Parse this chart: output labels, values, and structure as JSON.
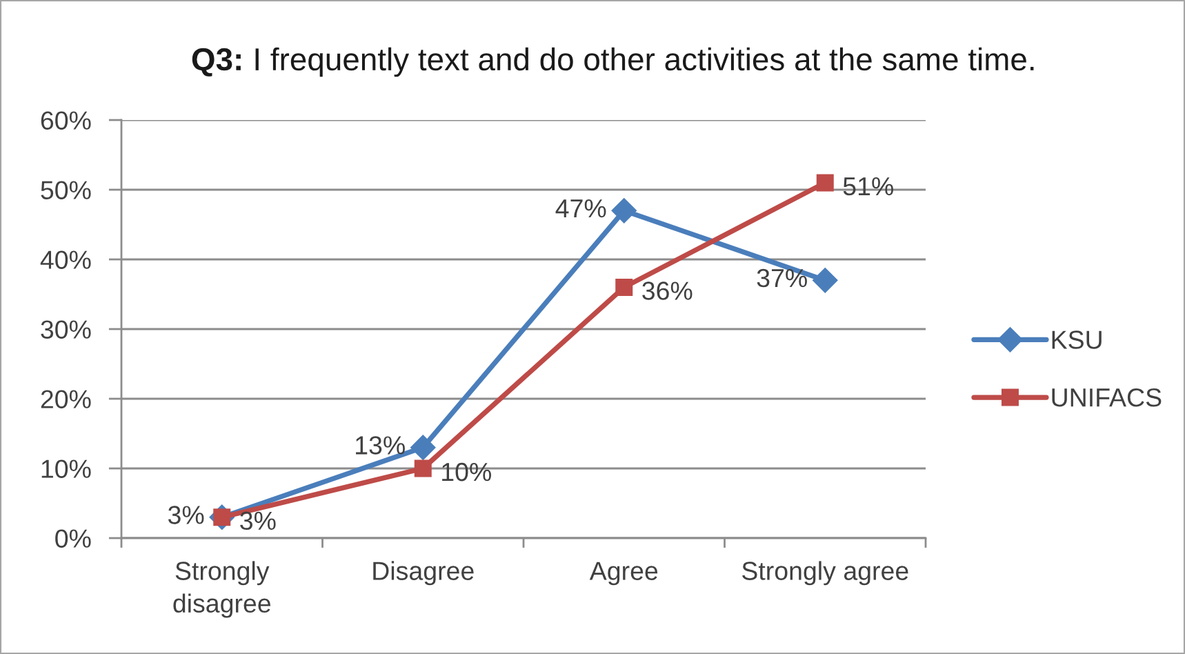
{
  "chart_data": {
    "type": "line",
    "title": "Q3: I frequently text and do other activities at the same time.",
    "categories": [
      "Strongly\ndisagree",
      "Disagree",
      "Agree",
      "Strongly agree"
    ],
    "series": [
      {
        "name": "KSU",
        "color": "#4a7ebb",
        "marker": "diamond",
        "values": [
          3,
          13,
          47,
          37
        ],
        "value_labels": [
          "3%",
          "13%",
          "47%",
          "37%"
        ]
      },
      {
        "name": "UNIFACS",
        "color": "#be4b48",
        "marker": "square",
        "values": [
          3,
          10,
          36,
          51
        ],
        "value_labels": [
          "3%",
          "10%",
          "36%",
          "51%"
        ]
      }
    ],
    "ylim": [
      0,
      60
    ],
    "yticks": [
      {
        "value": 0,
        "label": "0%"
      },
      {
        "value": 10,
        "label": "10%"
      },
      {
        "value": 20,
        "label": "20%"
      },
      {
        "value": 30,
        "label": "30%"
      },
      {
        "value": 40,
        "label": "40%"
      },
      {
        "value": 50,
        "label": "50%"
      },
      {
        "value": 60,
        "label": "60%"
      }
    ],
    "grid": "y",
    "legend": "right",
    "line_style": "solid"
  }
}
